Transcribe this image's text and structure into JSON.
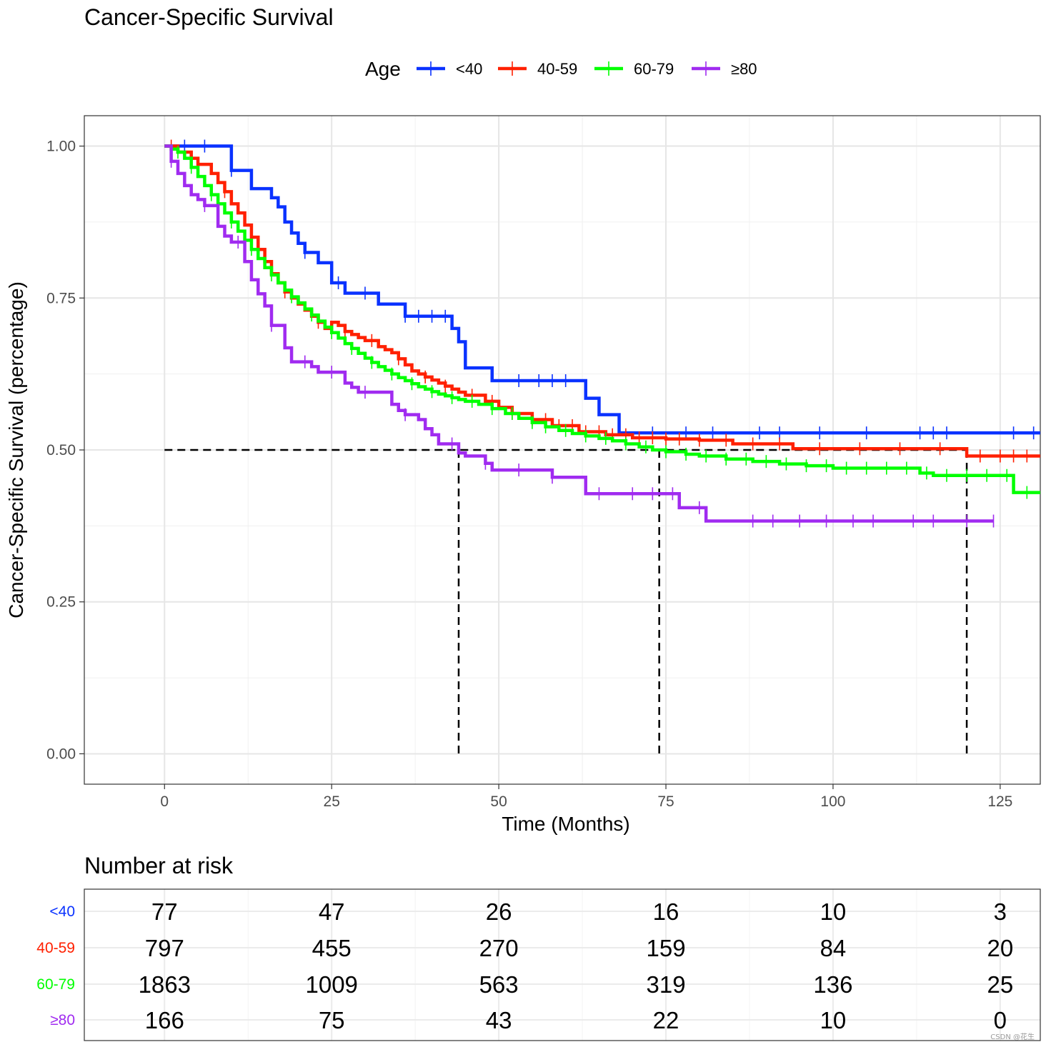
{
  "chart_data": {
    "type": "line",
    "subtype": "kaplan-meier",
    "title": "Cancer-Specific Survival",
    "xlabel": "Time (Months)",
    "ylabel": "Cancer-Specific Survival (percentage)",
    "xlim": [
      -12,
      131
    ],
    "ylim": [
      -0.05,
      1.05
    ],
    "x_ticks": [
      0,
      25,
      50,
      75,
      100,
      125
    ],
    "x_tick_labels": [
      "0",
      "25",
      "50",
      "75",
      "100",
      "125"
    ],
    "y_ticks": [
      0,
      0.25,
      0.5,
      0.75,
      1.0
    ],
    "y_tick_labels": [
      "0.00",
      "0.25",
      "0.50",
      "0.75",
      "1.00"
    ],
    "grid": true,
    "legend": {
      "title": "Age",
      "position": "top"
    },
    "median_lines": {
      "y": 0.5,
      "x_end": 120,
      "x_drops": [
        44,
        74,
        120
      ]
    },
    "series": [
      {
        "name": "<40",
        "color": "#0A32FF",
        "x": [
          0,
          10,
          13,
          16,
          17,
          18,
          19,
          20,
          21,
          23,
          25,
          27,
          32,
          36,
          43,
          44,
          45,
          49,
          63,
          65,
          68,
          131
        ],
        "y": [
          1.0,
          0.96,
          0.93,
          0.915,
          0.9,
          0.875,
          0.857,
          0.84,
          0.825,
          0.808,
          0.775,
          0.758,
          0.74,
          0.72,
          0.7,
          0.678,
          0.635,
          0.614,
          0.585,
          0.558,
          0.528,
          0.528
        ],
        "censor_x": [
          3,
          6,
          10,
          21,
          26,
          30,
          36,
          38,
          40,
          42,
          53,
          56,
          58,
          60,
          73,
          78,
          82,
          89,
          92,
          98,
          105,
          113,
          115,
          117,
          127,
          130
        ]
      },
      {
        "name": "40-59",
        "color": "#FF2000",
        "x": [
          0,
          2,
          4,
          5,
          7,
          8,
          9,
          10,
          11,
          12,
          13,
          14,
          15,
          16,
          17,
          18,
          19,
          20,
          21,
          22,
          23,
          24,
          25,
          26,
          27,
          28,
          29,
          30,
          32,
          33,
          34,
          35,
          36,
          37,
          38,
          39,
          40,
          41,
          42,
          43,
          44,
          45,
          48,
          50,
          52,
          55,
          58,
          62,
          66,
          70,
          75,
          80,
          85,
          94,
          120,
          131
        ],
        "y": [
          1.0,
          0.99,
          0.98,
          0.97,
          0.955,
          0.94,
          0.925,
          0.905,
          0.89,
          0.87,
          0.85,
          0.83,
          0.81,
          0.79,
          0.775,
          0.76,
          0.75,
          0.74,
          0.73,
          0.72,
          0.71,
          0.7,
          0.71,
          0.705,
          0.695,
          0.69,
          0.685,
          0.68,
          0.67,
          0.665,
          0.66,
          0.65,
          0.64,
          0.63,
          0.625,
          0.62,
          0.615,
          0.61,
          0.605,
          0.6,
          0.595,
          0.59,
          0.58,
          0.57,
          0.56,
          0.55,
          0.54,
          0.53,
          0.525,
          0.52,
          0.518,
          0.516,
          0.51,
          0.502,
          0.49,
          0.49
        ],
        "censor_x": [
          1,
          5,
          9,
          14,
          18,
          23,
          27,
          31,
          35,
          39,
          42,
          46,
          49,
          52,
          55,
          57,
          59,
          61,
          63,
          65,
          67,
          69,
          71,
          73,
          75,
          77,
          80,
          84,
          88,
          92,
          98,
          104,
          110,
          116,
          122,
          125,
          127,
          129
        ]
      },
      {
        "name": "60-79",
        "color": "#00FF00",
        "x": [
          0,
          1,
          2,
          3,
          4,
          5,
          6,
          7,
          8,
          9,
          10,
          11,
          12,
          13,
          14,
          15,
          16,
          17,
          18,
          19,
          20,
          21,
          22,
          23,
          24,
          25,
          26,
          27,
          28,
          29,
          30,
          31,
          32,
          33,
          34,
          35,
          36,
          37,
          38,
          39,
          40,
          41,
          42,
          43,
          44,
          45,
          47,
          49,
          51,
          53,
          55,
          57,
          59,
          61,
          63,
          65,
          67,
          69,
          71,
          73,
          75,
          78,
          80,
          84,
          88,
          92,
          96,
          100,
          110,
          113,
          115,
          127,
          131
        ],
        "y": [
          1.0,
          0.995,
          0.99,
          0.98,
          0.965,
          0.95,
          0.935,
          0.92,
          0.905,
          0.89,
          0.875,
          0.86,
          0.845,
          0.83,
          0.815,
          0.8,
          0.788,
          0.775,
          0.763,
          0.752,
          0.742,
          0.732,
          0.722,
          0.712,
          0.702,
          0.693,
          0.684,
          0.675,
          0.667,
          0.659,
          0.651,
          0.644,
          0.637,
          0.631,
          0.625,
          0.619,
          0.614,
          0.609,
          0.604,
          0.6,
          0.596,
          0.592,
          0.589,
          0.586,
          0.583,
          0.58,
          0.575,
          0.568,
          0.56,
          0.552,
          0.545,
          0.538,
          0.532,
          0.527,
          0.523,
          0.519,
          0.515,
          0.51,
          0.505,
          0.5,
          0.497,
          0.493,
          0.49,
          0.485,
          0.481,
          0.477,
          0.474,
          0.47,
          0.47,
          0.462,
          0.458,
          0.43,
          0.43
        ],
        "censor_x": [
          2,
          4,
          7,
          10,
          13,
          16,
          19,
          22,
          25,
          28,
          31,
          34,
          37,
          40,
          43,
          46,
          49,
          52,
          55,
          57,
          60,
          63,
          66,
          69,
          72,
          75,
          78,
          81,
          84,
          87,
          90,
          93,
          96,
          99,
          102,
          105,
          108,
          111,
          114,
          117,
          120,
          123,
          126,
          129
        ]
      },
      {
        "name": "≥80",
        "color": "#A02BF0",
        "x": [
          0,
          1,
          2,
          3,
          4,
          5,
          6,
          8,
          9,
          10,
          12,
          13,
          14,
          15,
          16,
          18,
          19,
          22,
          23,
          27,
          28,
          29,
          30,
          34,
          35,
          36,
          38,
          39,
          40,
          41,
          44,
          45,
          48,
          49,
          58,
          63,
          77,
          81,
          124
        ],
        "y": [
          1.0,
          0.975,
          0.955,
          0.935,
          0.92,
          0.912,
          0.902,
          0.868,
          0.852,
          0.842,
          0.81,
          0.78,
          0.757,
          0.737,
          0.705,
          0.668,
          0.645,
          0.637,
          0.628,
          0.61,
          0.603,
          0.595,
          0.595,
          0.575,
          0.565,
          0.558,
          0.55,
          0.535,
          0.525,
          0.51,
          0.495,
          0.49,
          0.478,
          0.467,
          0.455,
          0.428,
          0.405,
          0.383,
          0.383
        ],
        "censor_x": [
          1,
          6,
          11,
          16,
          21,
          25,
          30,
          36,
          43,
          48,
          53,
          58,
          65,
          70,
          73,
          76,
          80,
          88,
          91,
          95,
          99,
          103,
          106,
          112,
          115,
          120,
          124
        ]
      }
    ]
  },
  "risk_table": {
    "title": "Number at risk",
    "times": [
      0,
      25,
      50,
      75,
      100,
      125
    ],
    "rows": [
      {
        "label": "<40",
        "color": "#0A32FF",
        "values": [
          "77",
          "47",
          "26",
          "16",
          "10",
          "3"
        ]
      },
      {
        "label": "40-59",
        "color": "#FF2000",
        "values": [
          "797",
          "455",
          "270",
          "159",
          "84",
          "20"
        ]
      },
      {
        "label": "60-79",
        "color": "#00FF00",
        "values": [
          "1863",
          "1009",
          "563",
          "319",
          "136",
          "25"
        ]
      },
      {
        "label": "≥80",
        "color": "#A02BF0",
        "values": [
          "166",
          "75",
          "43",
          "22",
          "10",
          "0"
        ]
      }
    ]
  },
  "watermark": "CSDN @花生"
}
